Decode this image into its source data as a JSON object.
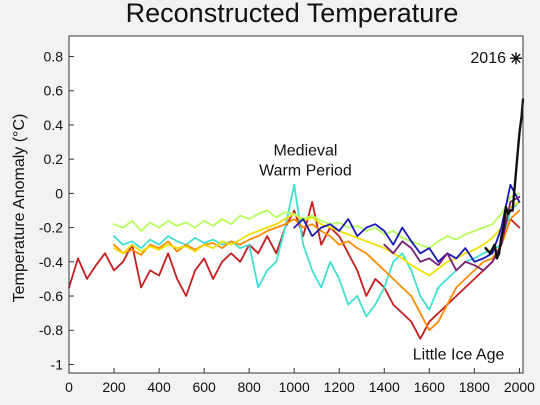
{
  "chart_data": {
    "type": "line",
    "title": "Reconstructed Temperature",
    "xlabel": "",
    "ylabel": "Temperature Anomaly (°C)",
    "xlim": [
      0,
      2016
    ],
    "ylim": [
      -1.05,
      0.92
    ],
    "x_ticks": [
      0,
      200,
      400,
      600,
      800,
      1000,
      1200,
      1400,
      1600,
      1800,
      2000
    ],
    "y_ticks": [
      -1,
      -0.8,
      -0.6,
      -0.4,
      -0.2,
      0,
      0.2,
      0.4,
      0.6,
      0.8
    ],
    "y_tick_labels": [
      "-1",
      "-0.8",
      "-0.6",
      "-0.4",
      "-0.2",
      "0",
      "0.2",
      "0.4",
      "0.6",
      "0.8"
    ],
    "grid": false,
    "annotations": [
      {
        "text_lines": [
          "Medieval",
          "Warm Period"
        ],
        "x": 1050,
        "y": 0.22
      },
      {
        "text_lines": [
          "Little Ice Age"
        ],
        "x": 1730,
        "y": -0.97
      }
    ],
    "marker_2016": {
      "label": "2016",
      "x": 2016,
      "y": 0.79
    },
    "series": [
      {
        "color": "#c41e1e",
        "x": [
          0,
          40,
          80,
          120,
          160,
          200,
          240,
          280,
          320,
          360,
          400,
          440,
          480,
          520,
          560,
          600,
          640,
          680,
          720,
          760,
          800,
          840,
          880,
          920,
          960,
          1000,
          1040,
          1080,
          1120,
          1160,
          1200,
          1240,
          1280,
          1320,
          1360,
          1400,
          1440,
          1480,
          1520,
          1560,
          1600,
          1640,
          1680,
          1720,
          1760,
          1800,
          1840,
          1880,
          1920,
          1960,
          2000
        ],
        "values": [
          -0.55,
          -0.38,
          -0.5,
          -0.42,
          -0.35,
          -0.45,
          -0.4,
          -0.3,
          -0.55,
          -0.45,
          -0.48,
          -0.35,
          -0.5,
          -0.6,
          -0.45,
          -0.38,
          -0.5,
          -0.4,
          -0.35,
          -0.4,
          -0.3,
          -0.35,
          -0.25,
          -0.35,
          -0.2,
          -0.1,
          -0.25,
          -0.05,
          -0.3,
          -0.2,
          -0.25,
          -0.35,
          -0.45,
          -0.6,
          -0.5,
          -0.55,
          -0.65,
          -0.7,
          -0.75,
          -0.85,
          -0.75,
          -0.7,
          -0.65,
          -0.6,
          -0.55,
          -0.5,
          -0.45,
          -0.4,
          -0.3,
          -0.15,
          -0.2
        ]
      },
      {
        "color": "#40e0d0",
        "x": [
          200,
          240,
          280,
          320,
          360,
          400,
          440,
          480,
          520,
          560,
          600,
          640,
          680,
          720,
          760,
          800,
          840,
          880,
          920,
          960,
          1000,
          1040,
          1080,
          1120,
          1160,
          1200,
          1240,
          1280,
          1320,
          1360,
          1400,
          1440,
          1480,
          1520,
          1560,
          1600,
          1640,
          1680,
          1720,
          1760,
          1800,
          1840,
          1880,
          1920,
          1960,
          2000
        ],
        "values": [
          -0.25,
          -0.3,
          -0.28,
          -0.32,
          -0.27,
          -0.3,
          -0.25,
          -0.28,
          -0.3,
          -0.26,
          -0.29,
          -0.27,
          -0.3,
          -0.28,
          -0.32,
          -0.3,
          -0.55,
          -0.45,
          -0.4,
          -0.2,
          0.05,
          -0.3,
          -0.45,
          -0.55,
          -0.4,
          -0.5,
          -0.65,
          -0.6,
          -0.72,
          -0.65,
          -0.55,
          -0.4,
          -0.35,
          -0.45,
          -0.6,
          -0.68,
          -0.55,
          -0.5,
          -0.45,
          -0.4,
          -0.38,
          -0.35,
          -0.33,
          -0.3,
          -0.1,
          -0.05
        ]
      },
      {
        "color": "#ff8c00",
        "x": [
          200,
          240,
          280,
          320,
          360,
          400,
          440,
          480,
          520,
          560,
          600,
          640,
          680,
          720,
          760,
          800,
          840,
          880,
          920,
          960,
          1000,
          1040,
          1080,
          1120,
          1160,
          1200,
          1240,
          1280,
          1320,
          1360,
          1400,
          1440,
          1480,
          1520,
          1560,
          1600,
          1640,
          1680,
          1720,
          1760,
          1800,
          1840,
          1880,
          1920,
          1960,
          2000
        ],
        "values": [
          -0.3,
          -0.35,
          -0.33,
          -0.36,
          -0.3,
          -0.32,
          -0.28,
          -0.34,
          -0.3,
          -0.33,
          -0.3,
          -0.29,
          -0.32,
          -0.28,
          -0.3,
          -0.27,
          -0.25,
          -0.22,
          -0.2,
          -0.18,
          -0.15,
          -0.2,
          -0.18,
          -0.22,
          -0.25,
          -0.3,
          -0.28,
          -0.32,
          -0.35,
          -0.4,
          -0.45,
          -0.5,
          -0.55,
          -0.6,
          -0.7,
          -0.8,
          -0.75,
          -0.65,
          -0.55,
          -0.5,
          -0.45,
          -0.4,
          -0.38,
          -0.3,
          -0.15,
          -0.1
        ]
      },
      {
        "color": "#f0e000",
        "x": [
          200,
          240,
          280,
          320,
          360,
          400,
          440,
          480,
          520,
          560,
          600,
          640,
          680,
          720,
          760,
          800,
          840,
          880,
          920,
          960,
          1000,
          1040,
          1080,
          1120,
          1160,
          1200,
          1240,
          1280,
          1320,
          1360,
          1400,
          1440,
          1480,
          1520,
          1560,
          1600,
          1640,
          1680,
          1720,
          1760,
          1800,
          1840,
          1880,
          1920,
          1960,
          2000
        ],
        "values": [
          -0.32,
          -0.35,
          -0.3,
          -0.34,
          -0.31,
          -0.33,
          -0.3,
          -0.32,
          -0.31,
          -0.34,
          -0.3,
          -0.32,
          -0.28,
          -0.3,
          -0.27,
          -0.24,
          -0.22,
          -0.2,
          -0.18,
          -0.15,
          -0.12,
          -0.16,
          -0.14,
          -0.18,
          -0.2,
          -0.22,
          -0.24,
          -0.26,
          -0.28,
          -0.3,
          -0.32,
          -0.35,
          -0.38,
          -0.42,
          -0.45,
          -0.48,
          -0.44,
          -0.4,
          -0.38,
          -0.35,
          -0.33,
          -0.3,
          -0.26,
          -0.2,
          -0.08,
          -0.05
        ]
      },
      {
        "color": "#b4ff5a",
        "x": [
          200,
          240,
          280,
          320,
          360,
          400,
          440,
          480,
          520,
          560,
          600,
          640,
          680,
          720,
          760,
          800,
          840,
          880,
          920,
          960,
          1000,
          1040,
          1080,
          1120,
          1160,
          1200,
          1240,
          1280,
          1320,
          1360,
          1400,
          1440,
          1480,
          1520,
          1560,
          1600,
          1640,
          1680,
          1720,
          1760,
          1800,
          1840,
          1880,
          1920,
          1960,
          2000
        ],
        "values": [
          -0.18,
          -0.2,
          -0.16,
          -0.22,
          -0.17,
          -0.2,
          -0.16,
          -0.19,
          -0.17,
          -0.2,
          -0.16,
          -0.19,
          -0.15,
          -0.18,
          -0.13,
          -0.15,
          -0.12,
          -0.1,
          -0.14,
          -0.11,
          -0.12,
          -0.15,
          -0.13,
          -0.16,
          -0.18,
          -0.17,
          -0.2,
          -0.19,
          -0.22,
          -0.2,
          -0.24,
          -0.22,
          -0.26,
          -0.28,
          -0.3,
          -0.32,
          -0.28,
          -0.25,
          -0.27,
          -0.24,
          -0.22,
          -0.2,
          -0.18,
          -0.12,
          -0.02,
          0.0
        ]
      },
      {
        "color": "#1a1ab4",
        "x": [
          1000,
          1040,
          1080,
          1120,
          1160,
          1200,
          1240,
          1280,
          1320,
          1360,
          1400,
          1440,
          1480,
          1520,
          1560,
          1600,
          1640,
          1680,
          1720,
          1760,
          1800,
          1840,
          1880,
          1920,
          1960,
          2000
        ],
        "values": [
          -0.2,
          -0.15,
          -0.25,
          -0.2,
          -0.18,
          -0.22,
          -0.15,
          -0.25,
          -0.2,
          -0.18,
          -0.22,
          -0.3,
          -0.2,
          -0.28,
          -0.35,
          -0.32,
          -0.4,
          -0.35,
          -0.38,
          -0.32,
          -0.4,
          -0.38,
          -0.35,
          -0.2,
          0.05,
          -0.05
        ]
      },
      {
        "color": "#7a1e7a",
        "x": [
          1400,
          1440,
          1480,
          1520,
          1560,
          1600,
          1640,
          1680,
          1720,
          1760,
          1800,
          1840,
          1880,
          1920,
          1960,
          2000
        ],
        "values": [
          -0.3,
          -0.35,
          -0.28,
          -0.32,
          -0.4,
          -0.38,
          -0.42,
          -0.35,
          -0.45,
          -0.4,
          -0.42,
          -0.45,
          -0.4,
          -0.3,
          -0.05,
          -0.02
        ]
      },
      {
        "color": "#111111",
        "x": [
          1850,
          1870,
          1890,
          1900,
          1910,
          1920,
          1930,
          1940,
          1950,
          1960,
          1970,
          1980,
          1990,
          2000,
          2010,
          2016
        ],
        "values": [
          -0.32,
          -0.35,
          -0.3,
          -0.38,
          -0.35,
          -0.25,
          -0.2,
          -0.08,
          -0.12,
          -0.1,
          -0.1,
          0.05,
          0.2,
          0.35,
          0.45,
          0.55
        ]
      }
    ]
  }
}
